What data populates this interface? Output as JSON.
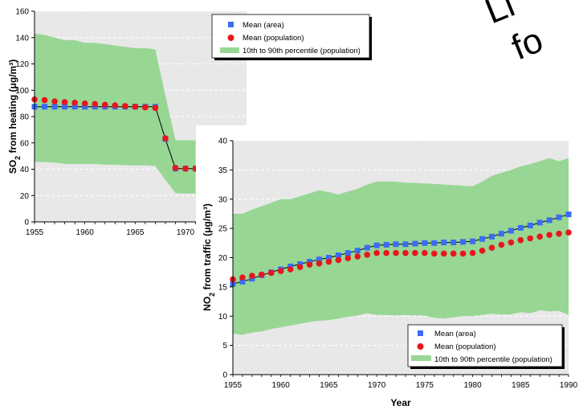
{
  "decorative_text": {
    "line1": "Li",
    "line2": "fo"
  },
  "chart_data": [
    {
      "type": "line",
      "title": "",
      "xlabel": "",
      "ylabel_main": "SO",
      "ylabel_sub": "2",
      "ylabel_rest": " from heating (μg/m³)",
      "xlim": [
        1955,
        1990
      ],
      "ylim": [
        0,
        160
      ],
      "x_ticks": [
        1955,
        1960,
        1965,
        1970
      ],
      "y_ticks": [
        0,
        20,
        40,
        60,
        80,
        100,
        120,
        140,
        160
      ],
      "grid": true,
      "legend_position": "top-right",
      "legend": [
        "Mean (area)",
        "Mean (population)",
        "10th to 90th percentile (population)"
      ],
      "colors": {
        "area": "#3a6cf4",
        "population": "#e8161b",
        "band": "#98d694",
        "background": "#e8e8e8"
      },
      "x": [
        1955,
        1956,
        1957,
        1958,
        1959,
        1960,
        1961,
        1962,
        1963,
        1964,
        1965,
        1966,
        1967,
        1968,
        1969,
        1970,
        1971
      ],
      "series": [
        {
          "name": "Mean (area)",
          "values": [
            87.5,
            87.5,
            87.5,
            87.5,
            87.5,
            87.5,
            87.5,
            87.5,
            87.5,
            87.5,
            87.5,
            87.5,
            87.5,
            63,
            40.5,
            40.5,
            40.5
          ]
        },
        {
          "name": "Mean (population)",
          "values": [
            93,
            92.5,
            91.5,
            91,
            90.5,
            90,
            89.5,
            89,
            88.5,
            88,
            87.5,
            87,
            86.5,
            63.5,
            41,
            40.5,
            40.5
          ]
        }
      ],
      "band": {
        "name": "10th to 90th percentile (population)",
        "upper": [
          143,
          142,
          140,
          138,
          138,
          136,
          136,
          135,
          134,
          133,
          132,
          132,
          131,
          96,
          62,
          62,
          62
        ],
        "lower": [
          45.5,
          45.5,
          45,
          44,
          44,
          44,
          44,
          43.5,
          43.5,
          43,
          43,
          43,
          42.5,
          32,
          22,
          21.5,
          21.5
        ]
      }
    },
    {
      "type": "line",
      "title": "",
      "xlabel": "Year",
      "ylabel_main": "NO",
      "ylabel_sub": "2",
      "ylabel_rest": " from traffic (μg/m³)",
      "xlim": [
        1955,
        1990
      ],
      "ylim": [
        0,
        40
      ],
      "x_ticks": [
        1955,
        1960,
        1965,
        1970,
        1975,
        1980,
        1985,
        1990
      ],
      "y_ticks": [
        0,
        5,
        10,
        15,
        20,
        25,
        30,
        35,
        40
      ],
      "grid": true,
      "legend_position": "bottom-right",
      "legend": [
        "Mean (area)",
        "Mean (population)",
        "10th to 90th percentile (population)"
      ],
      "colors": {
        "area": "#3a6cf4",
        "population": "#e8161b",
        "band": "#98d694",
        "background": "#e8e8e8"
      },
      "x": [
        1955,
        1956,
        1957,
        1958,
        1959,
        1960,
        1961,
        1962,
        1963,
        1964,
        1965,
        1966,
        1967,
        1968,
        1969,
        1970,
        1971,
        1972,
        1973,
        1974,
        1975,
        1976,
        1977,
        1978,
        1979,
        1980,
        1981,
        1982,
        1983,
        1984,
        1985,
        1986,
        1987,
        1988,
        1989,
        1990
      ],
      "series": [
        {
          "name": "Mean (area)",
          "values": [
            15.5,
            15.9,
            16.4,
            17,
            17.5,
            18,
            18.5,
            18.9,
            19.3,
            19.7,
            20,
            20.4,
            20.8,
            21.2,
            21.7,
            22.1,
            22.2,
            22.3,
            22.3,
            22.4,
            22.5,
            22.5,
            22.6,
            22.6,
            22.7,
            22.8,
            23.2,
            23.6,
            24.1,
            24.6,
            25.1,
            25.5,
            26,
            26.4,
            26.9,
            27.4
          ]
        },
        {
          "name": "Mean (population)",
          "values": [
            16.3,
            16.6,
            16.9,
            17.1,
            17.4,
            17.7,
            18,
            18.4,
            18.8,
            19,
            19.3,
            19.6,
            19.9,
            20.2,
            20.5,
            20.8,
            20.8,
            20.8,
            20.8,
            20.8,
            20.8,
            20.7,
            20.7,
            20.7,
            20.7,
            20.8,
            21.2,
            21.7,
            22.2,
            22.6,
            23,
            23.3,
            23.6,
            23.9,
            24.1,
            24.3
          ]
        }
      ],
      "band": {
        "name": "10th to 90th percentile (population)",
        "upper": [
          27.5,
          27.5,
          28.2,
          28.8,
          29.4,
          30,
          30,
          30.5,
          31,
          31.5,
          31.2,
          30.8,
          31.3,
          31.8,
          32.5,
          33,
          33,
          33,
          32.8,
          32.8,
          32.7,
          32.6,
          32.5,
          32.4,
          32.3,
          32.2,
          33,
          34,
          34.5,
          35,
          35.6,
          36,
          36.5,
          37,
          36.5,
          37
        ],
        "lower": [
          7,
          6.8,
          7.2,
          7.4,
          7.8,
          8.1,
          8.4,
          8.7,
          9,
          9.2,
          9.3,
          9.6,
          9.9,
          10.1,
          10.5,
          10.2,
          10.2,
          10.1,
          10.2,
          10.1,
          10.1,
          9.7,
          9.6,
          9.8,
          10,
          10,
          10.2,
          10.4,
          10.3,
          10.3,
          10.7,
          10.5,
          11,
          10.8,
          10.9,
          10.2
        ]
      }
    }
  ]
}
